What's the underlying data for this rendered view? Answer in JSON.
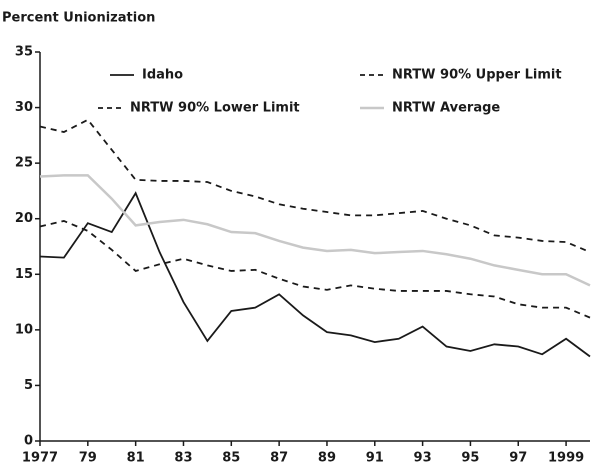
{
  "chart_data": {
    "type": "line",
    "ylabel": "Percent Unionization",
    "x": [
      1977,
      1978,
      1979,
      1980,
      1981,
      1982,
      1983,
      1984,
      1985,
      1986,
      1987,
      1988,
      1989,
      1990,
      1991,
      1992,
      1993,
      1994,
      1995,
      1996,
      1997,
      1998,
      1999,
      2000
    ],
    "series": [
      {
        "name": "Idaho",
        "color": "#1a1a1a",
        "line_style": "solid",
        "values": [
          16.6,
          16.5,
          19.6,
          18.8,
          22.3,
          17.0,
          12.5,
          9.0,
          11.7,
          12.0,
          13.2,
          11.3,
          9.8,
          9.5,
          8.9,
          9.2,
          10.3,
          8.5,
          8.1,
          8.7,
          8.5,
          7.8,
          9.2,
          7.6
        ]
      },
      {
        "name": "NRTW 90% Upper Limit",
        "color": "#1a1a1a",
        "line_style": "dashed",
        "values": [
          28.3,
          27.8,
          28.9,
          26.2,
          23.5,
          23.4,
          23.4,
          23.3,
          22.5,
          22.0,
          21.3,
          20.9,
          20.6,
          20.3,
          20.3,
          20.5,
          20.7,
          20.0,
          19.4,
          18.5,
          18.3,
          18.0,
          17.9,
          17.0
        ]
      },
      {
        "name": "NRTW 90% Lower Limit",
        "color": "#1a1a1a",
        "line_style": "dashed",
        "values": [
          19.3,
          19.8,
          18.9,
          17.2,
          15.3,
          15.9,
          16.4,
          15.8,
          15.3,
          15.4,
          14.6,
          13.9,
          13.6,
          14.0,
          13.7,
          13.5,
          13.5,
          13.5,
          13.2,
          13.0,
          12.3,
          12.0,
          12.0,
          11.1
        ]
      },
      {
        "name": "NRTW Average",
        "color": "#c8c8c8",
        "line_style": "solid",
        "values": [
          23.8,
          23.9,
          23.9,
          21.8,
          19.4,
          19.7,
          19.9,
          19.5,
          18.8,
          18.7,
          18.0,
          17.4,
          17.1,
          17.2,
          16.9,
          17.0,
          17.1,
          16.8,
          16.4,
          15.8,
          15.4,
          15.0,
          15.0,
          14.0
        ]
      }
    ],
    "xlim": [
      1977,
      2000
    ],
    "xticks": [
      1977,
      {
        "value": 1979,
        "label": "79"
      },
      {
        "value": 1981,
        "label": "81"
      },
      {
        "value": 1983,
        "label": "83"
      },
      {
        "value": 1985,
        "label": "85"
      },
      {
        "value": 1987,
        "label": "87"
      },
      {
        "value": 1989,
        "label": "89"
      },
      {
        "value": 1991,
        "label": "91"
      },
      {
        "value": 1993,
        "label": "93"
      },
      {
        "value": 1995,
        "label": "95"
      },
      {
        "value": 1997,
        "label": "97"
      },
      1999
    ],
    "ylim": [
      0,
      35
    ],
    "yticks": [
      0,
      5,
      10,
      15,
      20,
      25,
      30,
      35
    ],
    "grid": false
  }
}
